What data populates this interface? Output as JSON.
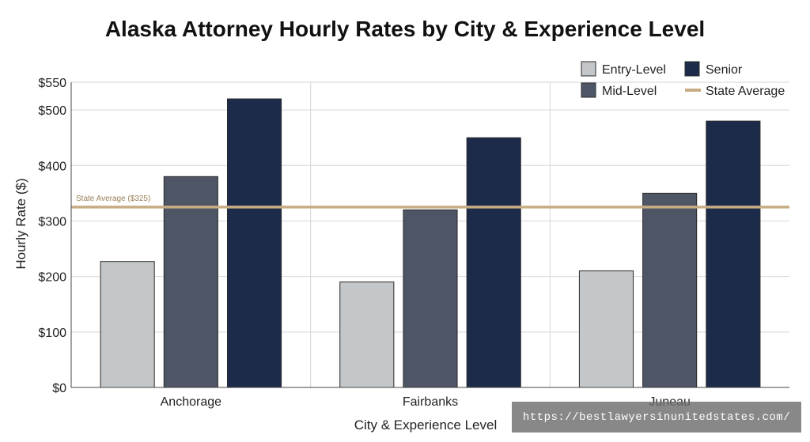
{
  "chart_data": {
    "type": "bar",
    "title": "Alaska Attorney Hourly Rates by City & Experience Level",
    "xlabel": "City & Experience Level",
    "ylabel": "Hourly Rate ($)",
    "categories": [
      "Anchorage",
      "Fairbanks",
      "Juneau"
    ],
    "series": [
      {
        "name": "Entry-Level",
        "color": "#c4c7c9",
        "values": [
          227,
          190,
          210
        ]
      },
      {
        "name": "Mid-Level",
        "color": "#4e5564",
        "values": [
          380,
          320,
          350
        ]
      },
      {
        "name": "Senior",
        "color": "#1c2b4a",
        "values": [
          520,
          450,
          480
        ]
      }
    ],
    "ylim": [
      0,
      550
    ],
    "yticks": [
      0,
      100,
      200,
      300,
      400,
      500,
      550
    ],
    "ytick_labels": [
      "$0",
      "$100",
      "$200",
      "$300",
      "$400",
      "$500",
      "$550"
    ],
    "reference_line": {
      "name": "State Average",
      "value": 325,
      "label": "State Average ($325)",
      "color": "#c8ad84"
    },
    "grid": true,
    "legend_position": "top-right"
  },
  "watermark": "https://bestlawyersinunitedstates.com/"
}
